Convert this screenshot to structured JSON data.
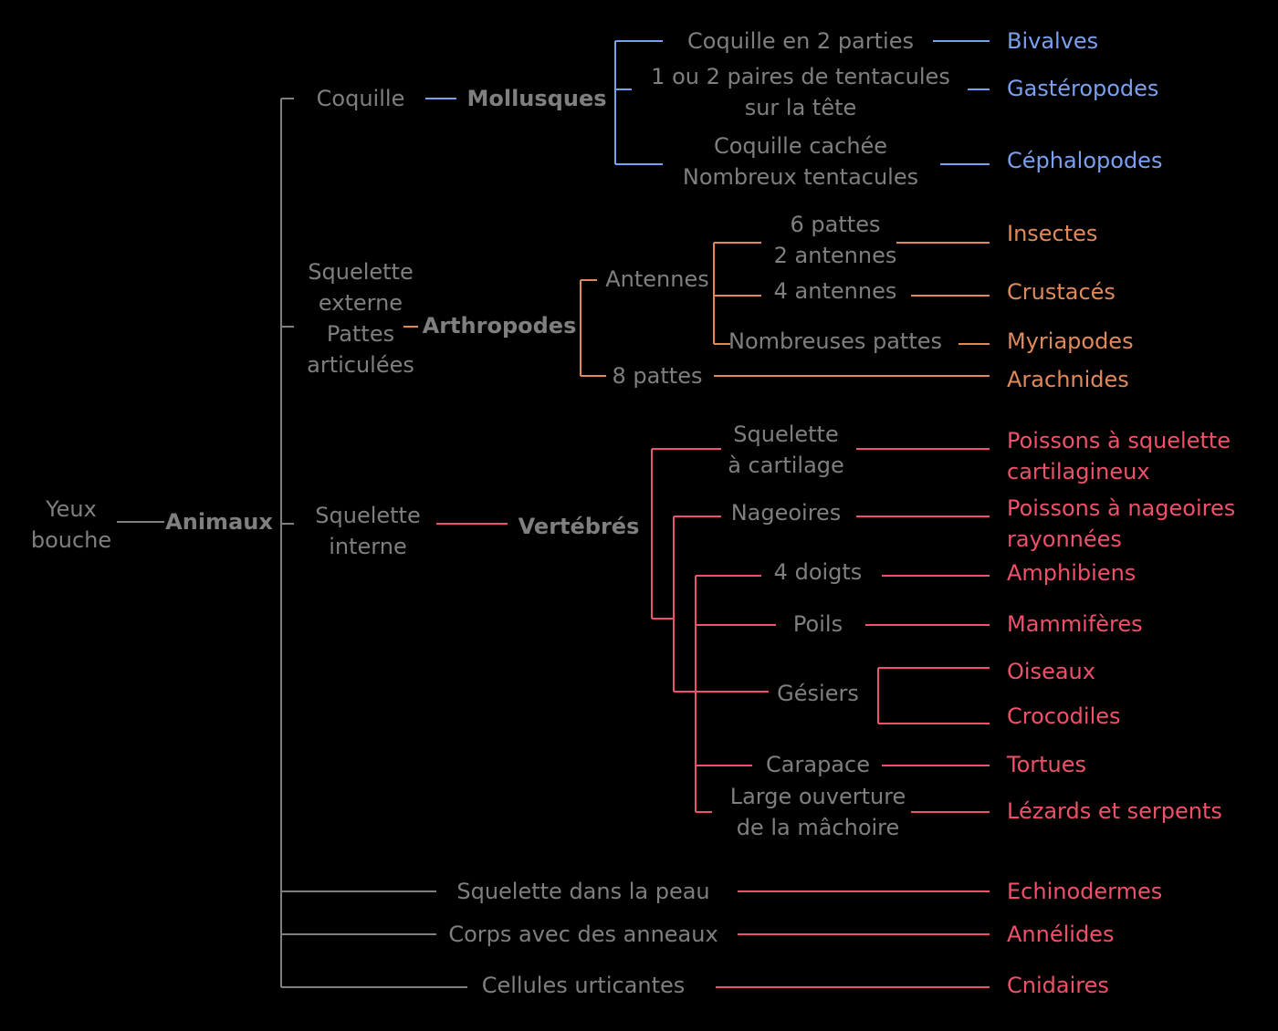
{
  "colors": {
    "gray": "#7f7f7f",
    "mollusques": "#7aa0f0",
    "arthropodes": "#e08a5c",
    "vertebres": "#f0506a"
  },
  "root": {
    "line1": "Yeux",
    "line2": "bouche",
    "animaux": "Animaux"
  },
  "mollusques": {
    "criterion": "Coquille",
    "group": "Mollusques",
    "sub": [
      {
        "criterion": "Coquille en 2 parties",
        "name": "Bivalves"
      },
      {
        "criterion1": "1 ou 2 paires de tentacules",
        "criterion2": "sur la tête",
        "name": "Gastéropodes"
      },
      {
        "criterion1": "Coquille cachée",
        "criterion2": "Nombreux tentacules",
        "name": "Céphalopodes"
      }
    ]
  },
  "arthropodes": {
    "criterion": [
      "Squelette",
      "externe",
      "Pattes",
      "articulées"
    ],
    "group": "Arthropodes",
    "antennes": "Antennes",
    "huit_pattes": "8 pattes",
    "sub": [
      {
        "criterion1": "6 pattes",
        "criterion2": "2 antennes",
        "name": "Insectes"
      },
      {
        "criterion": "4 antennes",
        "name": "Crustacés"
      },
      {
        "criterion": "Nombreuses pattes",
        "name": "Myriapodes"
      },
      {
        "name": "Arachnides"
      }
    ]
  },
  "vertebres": {
    "criterion1": "Squelette",
    "criterion2": "interne",
    "group": "Vertébrés",
    "sub": [
      {
        "criterion1": "Squelette",
        "criterion2": "à cartilage",
        "name1": "Poissons à squelette",
        "name2": "cartilagineux"
      },
      {
        "criterion": "Nageoires",
        "name1": "Poissons à nageoires",
        "name2": "rayonnées"
      },
      {
        "criterion": "4 doigts",
        "name": "Amphibiens"
      },
      {
        "criterion": "Poils",
        "name": "Mammifères"
      },
      {
        "criterion": "Gésiers",
        "names": [
          "Oiseaux",
          "Crocodiles"
        ]
      },
      {
        "criterion": "Carapace",
        "name": "Tortues"
      },
      {
        "criterion1": "Large ouverture",
        "criterion2": "de la mâchoire",
        "name": "Lézards et serpents"
      }
    ]
  },
  "autres": [
    {
      "criterion": "Squelette dans la peau",
      "name": "Echinodermes"
    },
    {
      "criterion": "Corps avec des anneaux",
      "name": "Annélides"
    },
    {
      "criterion": "Cellules urticantes",
      "name": "Cnidaires"
    }
  ]
}
